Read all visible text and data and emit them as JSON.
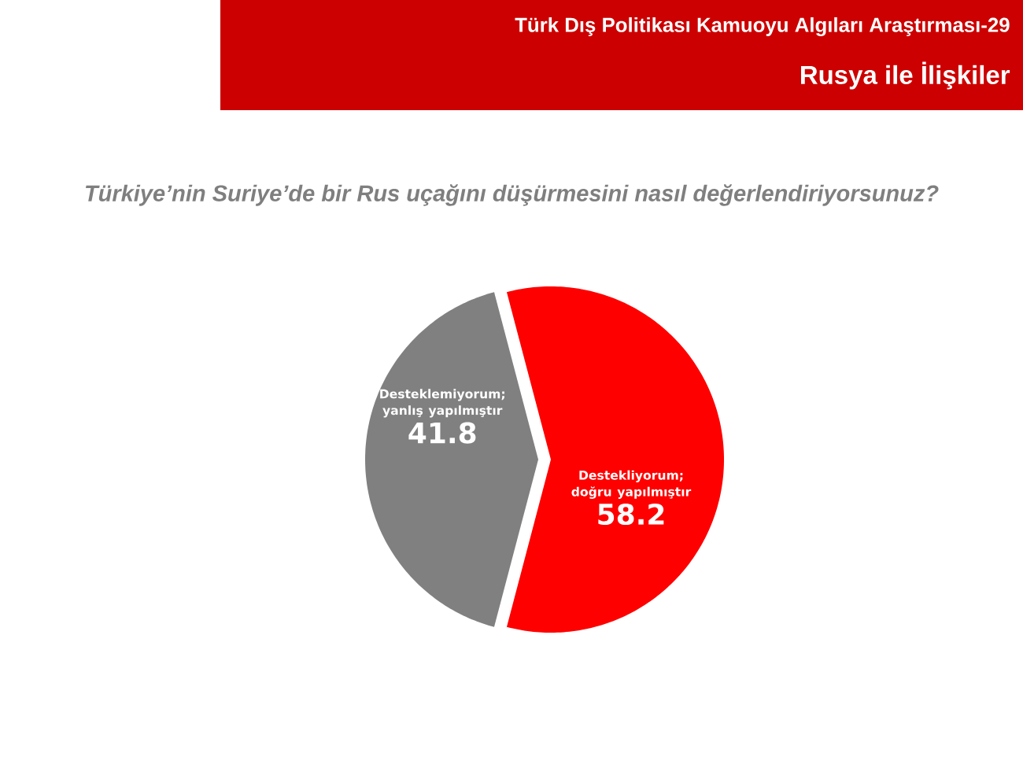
{
  "chart_data": {
    "type": "pie",
    "title": "Türkiye’nin Suriye’de bir Rus uçağını düşürmesini nasıl değerlendiriyorsunuz?",
    "annotations": [
      "Türk Dış Politikası Kamuoyu Algıları Araştırması-29",
      "Rusya ile İlişkiler"
    ],
    "categories": [
      "Destekliyorum; doğru yapılmıştır",
      "Desteklemiyorum; yanlış yapılmıştır"
    ],
    "values": [
      58.2,
      41.8
    ],
    "colors": [
      "#ff0000",
      "#808080"
    ],
    "data_labels": true
  }
}
